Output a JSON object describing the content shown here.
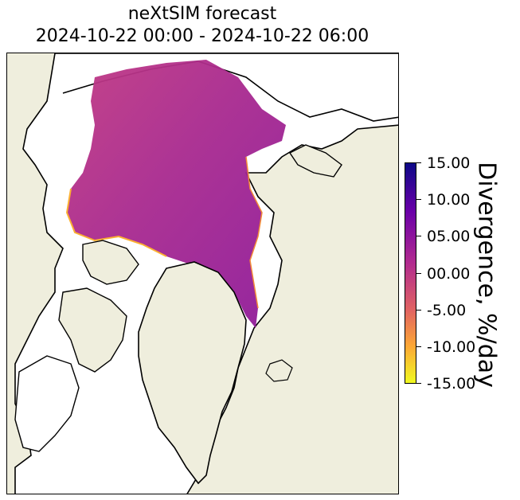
{
  "title": {
    "line1": "neXtSIM forecast",
    "line2": "2024-10-22 00:00 - 2024-10-22 06:00"
  },
  "colorbar": {
    "label": "Divergence, %/day",
    "ticks": [
      "15.00",
      "10.00",
      "05.00",
      "00.00",
      "-5.00",
      "-10.00",
      "-15.00"
    ],
    "colormap": "plasma_r",
    "range": [
      -15,
      15
    ]
  },
  "colors": {
    "land": "#efeedd",
    "open_water": "#ffffff",
    "coastline": "#000000",
    "ice_mid": "#b12a90"
  }
}
